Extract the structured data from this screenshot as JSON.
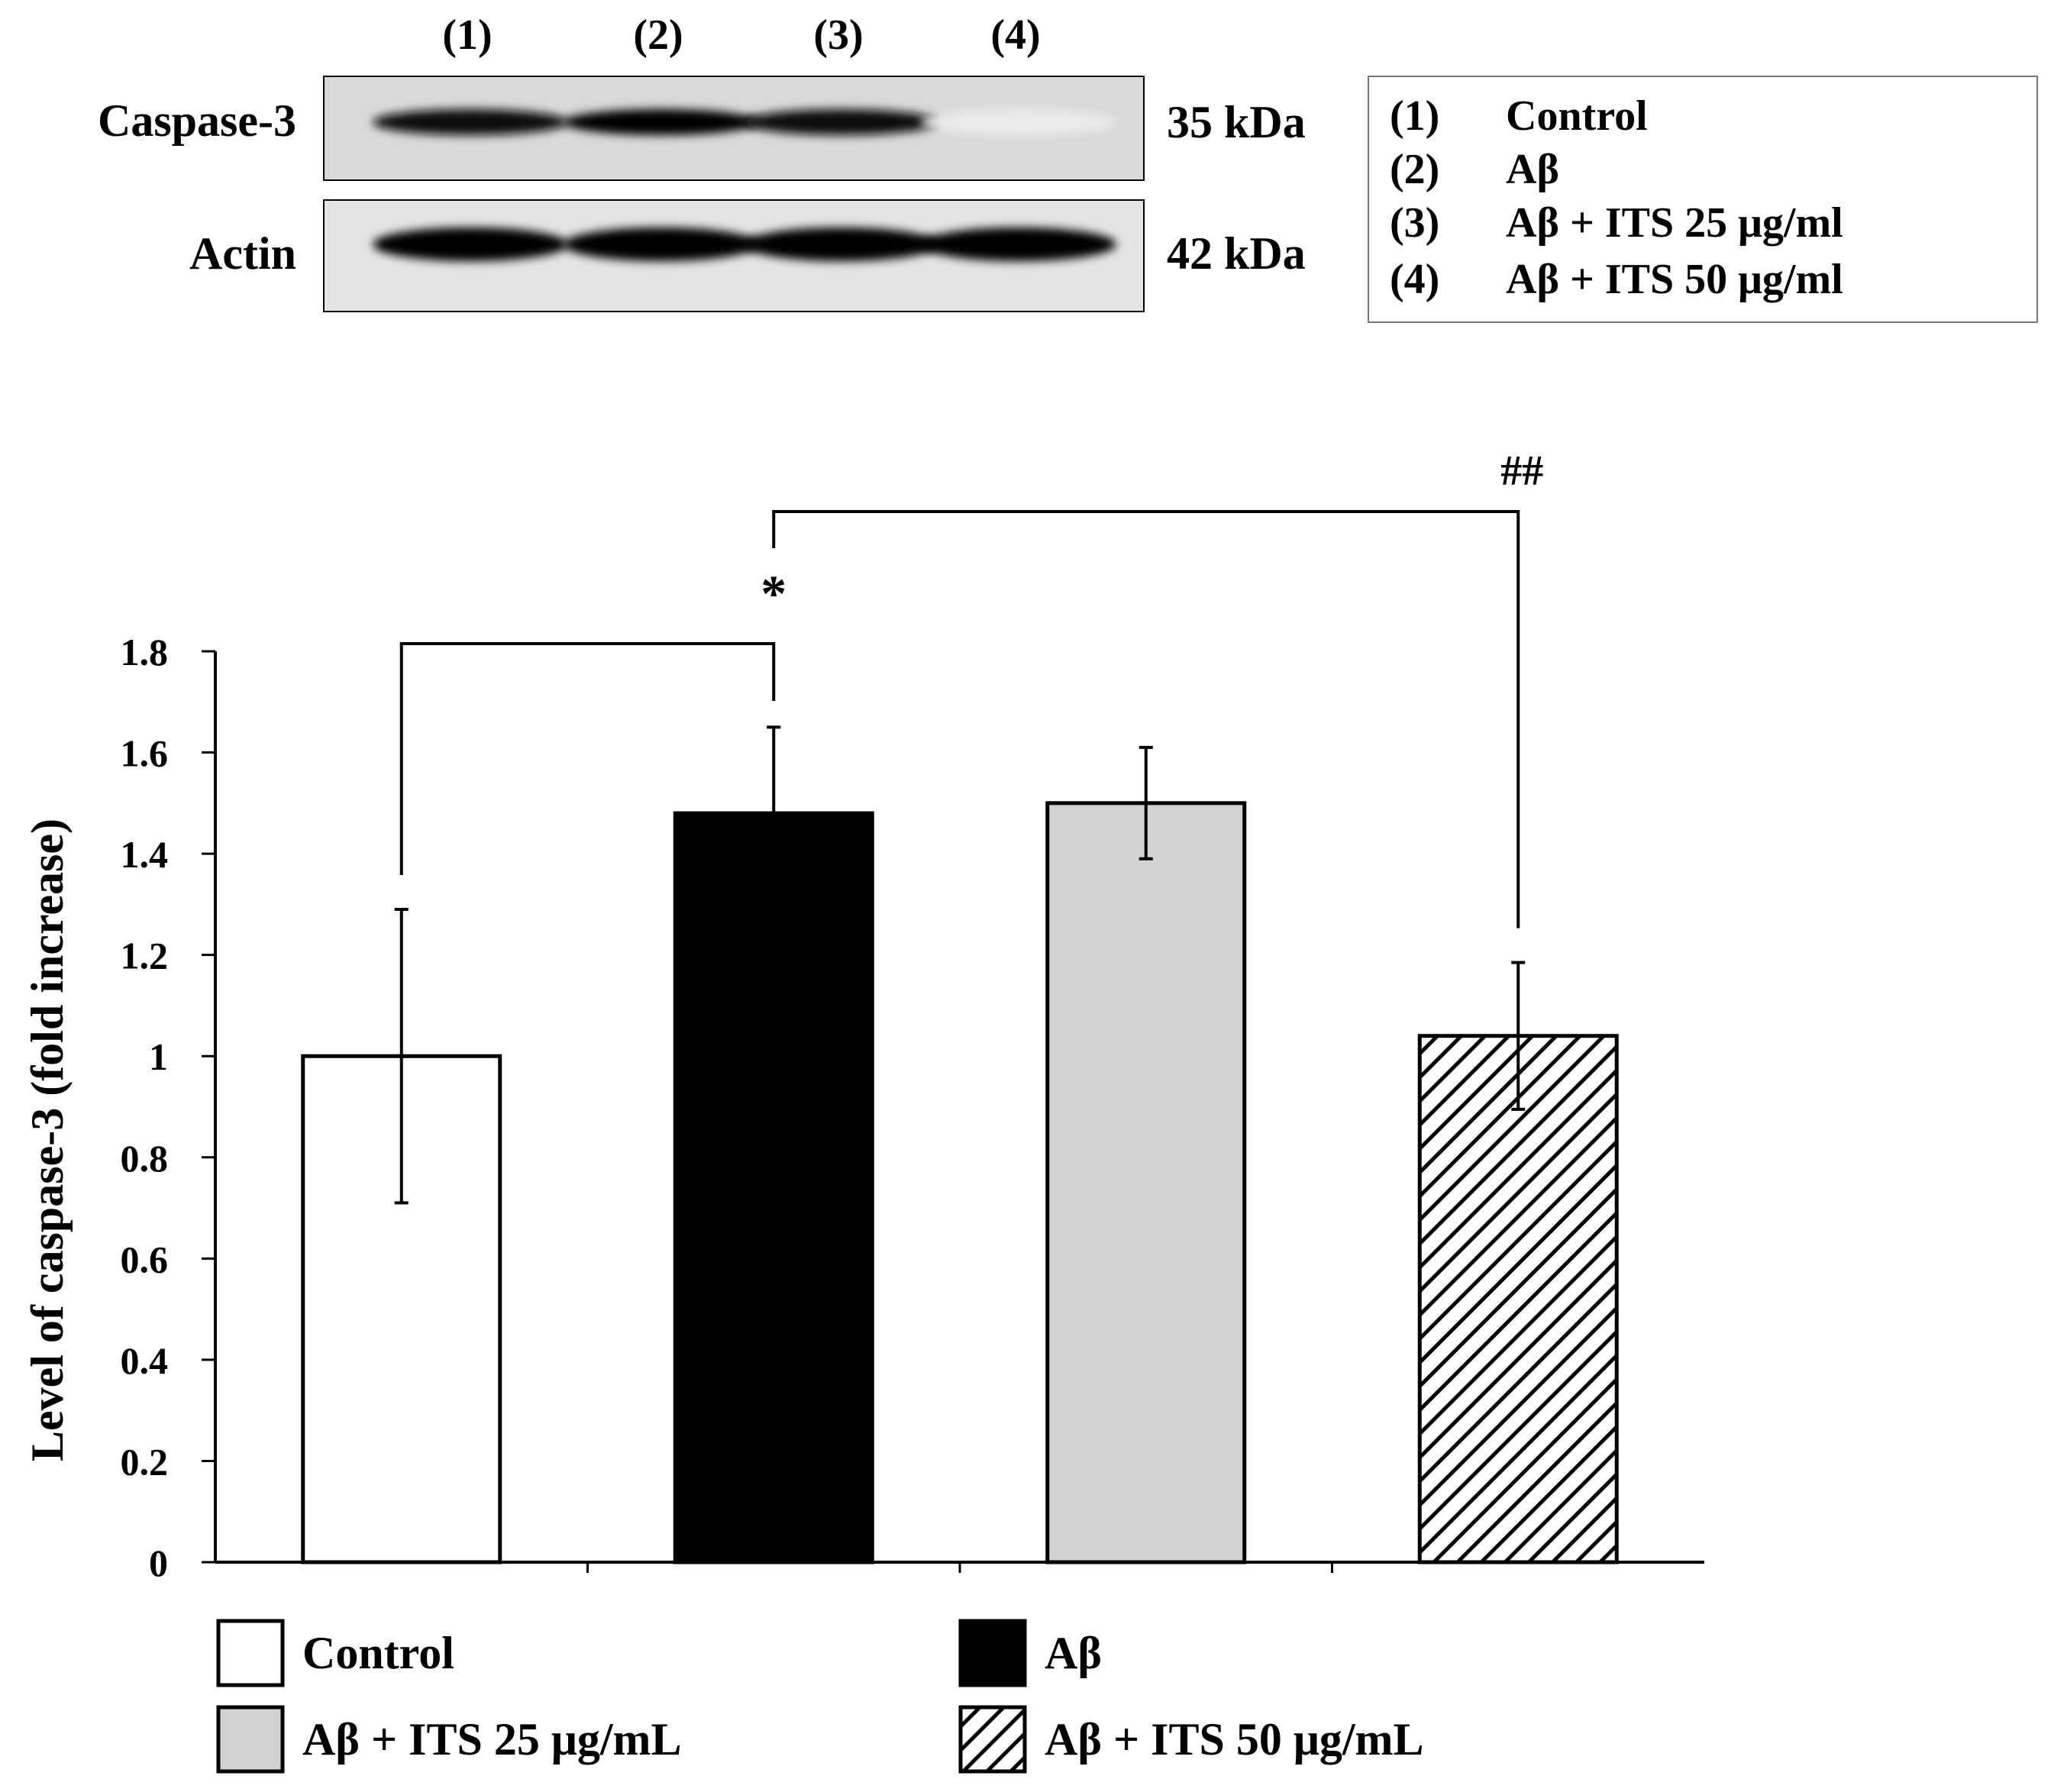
{
  "blot": {
    "lane_labels": [
      "(1)",
      "(2)",
      "(3)",
      "(4)"
    ],
    "rows": [
      {
        "label": "Caspase-3",
        "size": "35 kDa",
        "intensity": [
          0.95,
          1.0,
          0.95,
          0.08
        ]
      },
      {
        "label": "Actin",
        "size": "42 kDa",
        "intensity": [
          1.0,
          1.0,
          1.0,
          1.0
        ]
      }
    ],
    "key": [
      {
        "num": "(1)",
        "text": "Control"
      },
      {
        "num": "(2)",
        "text": "Aβ"
      },
      {
        "num": "(3)",
        "text": "Aβ + ITS 25 μg/ml"
      },
      {
        "num": "(4)",
        "text": "Aβ + ITS 50 μg/ml"
      }
    ]
  },
  "chart_data": {
    "type": "bar",
    "title": "",
    "xlabel": "",
    "ylabel": "Level of caspase-3 (fold increase)",
    "ylim": [
      0,
      1.8
    ],
    "yticks": [
      0,
      0.2,
      0.4,
      0.6,
      0.8,
      1,
      1.2,
      1.4,
      1.6,
      1.8
    ],
    "ytick_labels": [
      "0",
      "0.2",
      "0.4",
      "0.6",
      "0.8",
      "1",
      "1.2",
      "1.4",
      "1.6",
      "1.8"
    ],
    "grid": false,
    "categories": [
      "Control",
      "Aβ",
      "Aβ + ITS 25 μg/mL",
      "Aβ + ITS 50 μg/mL"
    ],
    "values": [
      1.0,
      1.48,
      1.5,
      1.04
    ],
    "errors": [
      0.29,
      0.17,
      0.11,
      0.145
    ],
    "fills": [
      "white",
      "black",
      "lightgray",
      "hatch"
    ],
    "colors": {
      "white": "#ffffff",
      "black": "#000000",
      "lightgray": "#d3d3d3",
      "hatch": "#000000"
    },
    "significance": [
      {
        "from": 0,
        "to": 1,
        "label": "*"
      },
      {
        "from": 1,
        "to": 3,
        "label": "##"
      }
    ],
    "legend": {
      "placement": "bottom",
      "entries": [
        {
          "label": "Control",
          "fill": "white"
        },
        {
          "label": "Aβ",
          "fill": "black"
        },
        {
          "label": "Aβ + ITS 25 μg/mL",
          "fill": "lightgray"
        },
        {
          "label": "Aβ + ITS 50 μg/mL",
          "fill": "hatch"
        }
      ]
    }
  }
}
